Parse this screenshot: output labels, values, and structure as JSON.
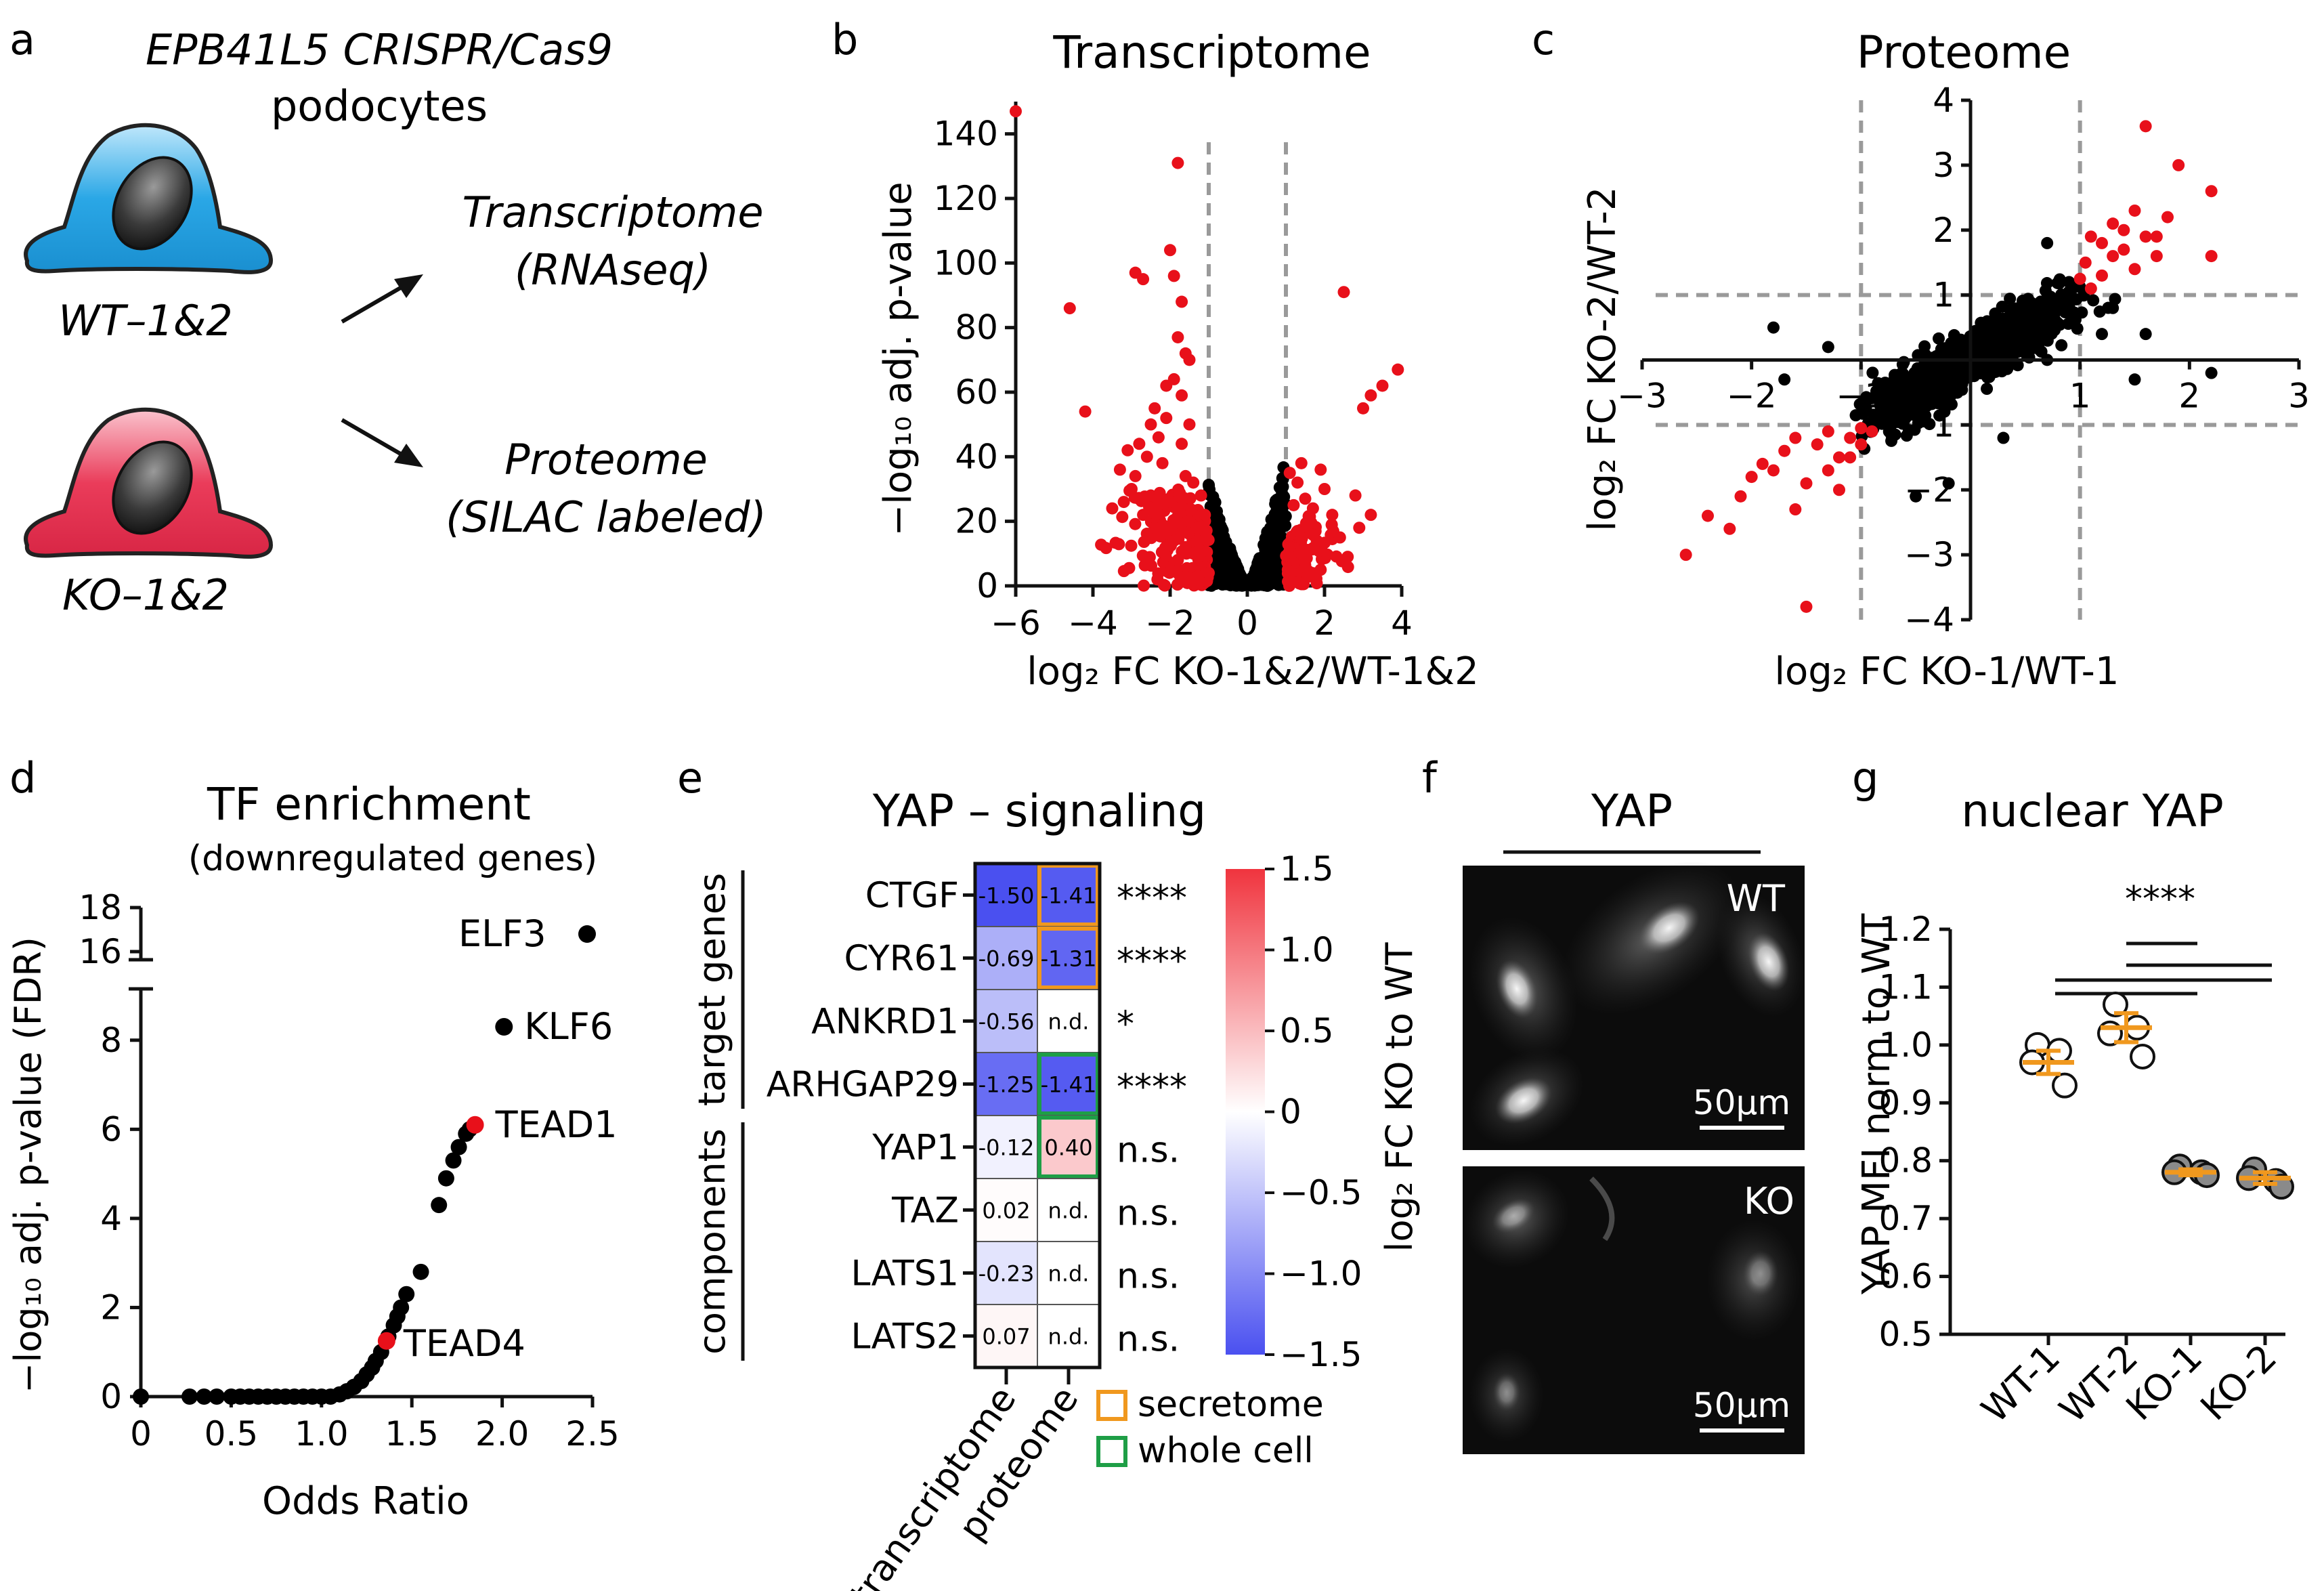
{
  "panel_letters": [
    "a",
    "b",
    "c",
    "d",
    "e",
    "f",
    "g"
  ],
  "panel_a": {
    "title_line1": "EPB41L5 CRISPR/Cas9",
    "title_line2": "podocytes",
    "wt_label": "WT–1&2",
    "ko_label": "KO–1&2",
    "out1_line1": "Transcriptome",
    "out1_line2": "(RNAseq)",
    "out2_line1": "Proteome",
    "out2_line2": "(SILAC labeled)",
    "colors": {
      "wt_cell": "#2aa7e6",
      "ko_cell": "#ea3c5a"
    }
  },
  "chart_data": [
    {
      "panel": "b",
      "type": "scatter",
      "title": "Transcriptome",
      "xlabel": "log₂ FC KO-1&2/WT-1&2",
      "ylabel": "−log₁₀ adj. p-value",
      "xlim": [
        -6,
        4
      ],
      "ylim": [
        0,
        150
      ],
      "xticks": [
        -6,
        -4,
        -2,
        0,
        2,
        4
      ],
      "yticks": [
        0,
        20,
        40,
        60,
        80,
        100,
        120,
        140
      ],
      "thresholds_x": [
        -1,
        1
      ],
      "colors": {
        "significant": "#e8101a",
        "non_significant": "#000000"
      },
      "series": [
        {
          "points_sig": [
            [
              -6.0,
              147
            ],
            [
              -4.6,
              86
            ],
            [
              -4.2,
              54
            ],
            [
              -2.4,
              55
            ],
            [
              -2.5,
              50
            ],
            [
              -1.8,
              131
            ],
            [
              -2.0,
              104
            ],
            [
              -2.9,
              97
            ],
            [
              -2.7,
              95
            ],
            [
              -1.9,
              96
            ],
            [
              -1.7,
              88
            ],
            [
              -1.8,
              77
            ],
            [
              -1.6,
              72
            ],
            [
              -1.5,
              70
            ],
            [
              -1.9,
              64
            ],
            [
              -2.1,
              62
            ],
            [
              -1.7,
              59
            ],
            [
              -2.3,
              46
            ],
            [
              -2.8,
              44
            ],
            [
              -3.1,
              42
            ],
            [
              -2.6,
              40
            ],
            [
              -2.2,
              38
            ],
            [
              -3.3,
              36
            ],
            [
              -1.6,
              34
            ],
            [
              -1.4,
              32
            ],
            [
              -3.0,
              30
            ],
            [
              -2.5,
              28
            ],
            [
              -2.0,
              26
            ],
            [
              -1.8,
              24
            ],
            [
              -3.5,
              24
            ],
            [
              -2.7,
              22
            ],
            [
              -1.5,
              20
            ],
            [
              -1.3,
              18
            ],
            [
              -2.2,
              16
            ],
            [
              -1.9,
              14
            ],
            [
              -1.6,
              12
            ],
            [
              -1.4,
              10
            ],
            [
              -1.2,
              8
            ],
            [
              -1.1,
              6
            ],
            [
              -1.0,
              4
            ],
            [
              -2.4,
              18
            ],
            [
              -3.2,
              26
            ],
            [
              -2.9,
              34
            ],
            [
              -1.7,
              44
            ],
            [
              -1.5,
              50
            ],
            [
              -2.1,
              52
            ],
            [
              -1.2,
              28
            ],
            [
              -1.1,
              22
            ],
            [
              -1.3,
              14
            ],
            [
              -1.8,
              8
            ],
            [
              2.5,
              91
            ],
            [
              3.9,
              67
            ],
            [
              3.5,
              62
            ],
            [
              3.2,
              59
            ],
            [
              3.0,
              55
            ],
            [
              1.9,
              36
            ],
            [
              1.4,
              38
            ],
            [
              1.1,
              35
            ],
            [
              2.0,
              30
            ],
            [
              1.5,
              27
            ],
            [
              1.2,
              25
            ],
            [
              2.8,
              28
            ],
            [
              2.2,
              22
            ],
            [
              1.6,
              20
            ],
            [
              1.3,
              17
            ],
            [
              1.8,
              14
            ],
            [
              2.4,
              15
            ],
            [
              1.1,
              12
            ],
            [
              1.4,
              10
            ],
            [
              1.2,
              7
            ],
            [
              1.05,
              5
            ],
            [
              2.9,
              18
            ],
            [
              1.7,
              24
            ],
            [
              3.2,
              22
            ],
            [
              1.3,
              32
            ],
            [
              2.6,
              9
            ],
            [
              1.9,
              5
            ]
          ],
          "density_neg": {
            "x_from": -1.0,
            "x_to": -0.1,
            "peak": 34
          },
          "density_pos": {
            "x_from": 0.1,
            "x_to": 1.0,
            "peak": 40
          }
        }
      ]
    },
    {
      "panel": "c",
      "type": "scatter",
      "title": "Proteome",
      "xlabel": "log₂ FC KO-1/WT-1",
      "ylabel": "log₂ FC KO-2/WT-2",
      "xlim": [
        -3,
        3
      ],
      "ylim": [
        -4,
        4
      ],
      "xticks": [
        -3,
        -2,
        -1,
        0,
        1,
        2,
        3
      ],
      "xtick_labels": [
        "−3",
        "−2",
        "−1",
        "",
        "1",
        "2",
        "3"
      ],
      "yticks": [
        -4,
        -3,
        -2,
        -1,
        1,
        2,
        3,
        4
      ],
      "ytick_labels": [
        "−4",
        "−3",
        "−2",
        "−1",
        "1",
        "2",
        "3",
        "4"
      ],
      "thresholds": [
        -1,
        1
      ],
      "colors": {
        "significant": "#e8101a",
        "non_significant": "#000000"
      },
      "series": [
        {
          "points_sig": [
            [
              1.6,
              3.6
            ],
            [
              1.9,
              3.0
            ],
            [
              2.2,
              2.6
            ],
            [
              2.2,
              1.6
            ],
            [
              1.5,
              2.3
            ],
            [
              1.3,
              2.1
            ],
            [
              1.1,
              1.9
            ],
            [
              1.4,
              1.7
            ],
            [
              1.7,
              1.6
            ],
            [
              1.2,
              1.3
            ],
            [
              1.05,
              1.5
            ],
            [
              1.6,
              1.9
            ],
            [
              1.3,
              1.6
            ],
            [
              1.8,
              2.2
            ],
            [
              1.1,
              1.1
            ],
            [
              1.5,
              1.4
            ],
            [
              1.2,
              1.8
            ],
            [
              1.4,
              2.0
            ],
            [
              1.0,
              1.25
            ],
            [
              1.7,
              1.9
            ],
            [
              -2.6,
              -3.0
            ],
            [
              -2.4,
              -2.4
            ],
            [
              -2.1,
              -2.1
            ],
            [
              -1.8,
              -1.7
            ],
            [
              -1.6,
              -2.3
            ],
            [
              -1.5,
              -1.9
            ],
            [
              -1.3,
              -1.7
            ],
            [
              -1.2,
              -1.5
            ],
            [
              -1.1,
              -1.2
            ],
            [
              -1.0,
              -1.3
            ],
            [
              -1.4,
              -1.3
            ],
            [
              -1.7,
              -1.4
            ],
            [
              -1.9,
              -1.6
            ],
            [
              -2.2,
              -2.6
            ],
            [
              -1.3,
              -1.1
            ],
            [
              -1.1,
              -1.5
            ],
            [
              -0.9,
              -1.1
            ],
            [
              -1.6,
              -1.2
            ],
            [
              -1.2,
              -2.0
            ],
            [
              -2.0,
              -1.8
            ],
            [
              -1.5,
              -3.8
            ],
            [
              -1.0,
              -1.05
            ]
          ],
          "cloud": {
            "slope": 0.95,
            "count": 1100,
            "spread": 0.28,
            "x_sd": 0.45
          },
          "outliers_ns": [
            [
              -1.8,
              0.5
            ],
            [
              -1.7,
              -0.3
            ],
            [
              -1.3,
              0.2
            ],
            [
              1.2,
              0.4
            ],
            [
              1.6,
              0.4
            ],
            [
              2.2,
              -0.2
            ],
            [
              1.5,
              -0.3
            ],
            [
              0.9,
              1.2
            ],
            [
              0.7,
              1.8
            ],
            [
              -0.5,
              -2.1
            ],
            [
              -0.2,
              -1.9
            ],
            [
              0.3,
              -1.2
            ],
            [
              1.3,
              0.8
            ]
          ]
        }
      ]
    },
    {
      "panel": "d",
      "type": "scatter",
      "title": "TF enrichment",
      "subtitle": "(downregulated genes)",
      "xlabel": "Odds Ratio",
      "ylabel": "−log₁₀ adj. p-value (FDR)",
      "xlim": [
        0,
        2.5
      ],
      "ylim_lower": [
        0,
        9
      ],
      "ylim_upper": [
        16,
        18
      ],
      "xticks": [
        0,
        0.5,
        1.0,
        1.5,
        2.0,
        2.5
      ],
      "xtick_labels": [
        "0",
        "0.5",
        "1.0",
        "1.5",
        "2.0",
        "2.5"
      ],
      "yticks_lower": [
        0,
        2,
        4,
        6,
        8
      ],
      "yticks_upper": [
        16,
        18
      ],
      "colors": {
        "highlight": "#e8101a",
        "other": "#000000"
      },
      "points": [
        [
          0,
          0
        ],
        [
          0.27,
          0
        ],
        [
          0.35,
          0
        ],
        [
          0.42,
          0
        ],
        [
          0.5,
          0
        ],
        [
          0.55,
          0
        ],
        [
          0.6,
          0
        ],
        [
          0.65,
          0
        ],
        [
          0.7,
          0
        ],
        [
          0.75,
          0
        ],
        [
          0.8,
          0
        ],
        [
          0.85,
          0
        ],
        [
          0.9,
          0
        ],
        [
          0.95,
          0
        ],
        [
          1.0,
          0
        ],
        [
          1.05,
          0
        ],
        [
          1.1,
          0.05
        ],
        [
          1.14,
          0.12
        ],
        [
          1.18,
          0.22
        ],
        [
          1.22,
          0.35
        ],
        [
          1.25,
          0.5
        ],
        [
          1.28,
          0.65
        ],
        [
          1.3,
          0.8
        ],
        [
          1.33,
          1.0
        ],
        [
          1.37,
          1.35
        ],
        [
          1.4,
          1.6
        ],
        [
          1.42,
          1.8
        ],
        [
          1.44,
          2.0
        ],
        [
          1.47,
          2.3
        ],
        [
          1.55,
          2.8
        ],
        [
          1.65,
          4.3
        ],
        [
          1.69,
          4.9
        ],
        [
          1.73,
          5.3
        ],
        [
          1.76,
          5.6
        ],
        [
          1.8,
          5.9
        ],
        [
          1.82,
          6.0
        ],
        [
          2.01,
          8.3
        ]
      ],
      "labeled": [
        {
          "name": "ELF3",
          "x": 2.47,
          "y": 16.8,
          "highlight": false
        },
        {
          "name": "KLF6",
          "x": 2.01,
          "y": 8.3,
          "highlight": false
        },
        {
          "name": "TEAD1",
          "x": 1.85,
          "y": 6.1,
          "highlight": true
        },
        {
          "name": "TEAD4",
          "x": 1.36,
          "y": 1.25,
          "highlight": true
        }
      ]
    },
    {
      "panel": "e",
      "type": "heatmap",
      "title": "YAP – signaling",
      "columns": [
        "transcriptome",
        "proteome"
      ],
      "groups": [
        {
          "label": "target genes",
          "rows": [
            0,
            3
          ]
        },
        {
          "label": "components",
          "rows": [
            4,
            7
          ]
        }
      ],
      "rows": [
        {
          "gene": "CTGF",
          "transcriptome": -1.5,
          "proteome": -1.41,
          "proteome_type": "secretome",
          "sig": "****"
        },
        {
          "gene": "CYR61",
          "transcriptome": -0.69,
          "proteome": -1.31,
          "proteome_type": "secretome",
          "sig": "****"
        },
        {
          "gene": "ANKRD1",
          "transcriptome": -0.56,
          "proteome": null,
          "proteome_type": null,
          "sig": "*"
        },
        {
          "gene": "ARHGAP29",
          "transcriptome": -1.25,
          "proteome": -1.41,
          "proteome_type": "whole cell",
          "sig": "****"
        },
        {
          "gene": "YAP1",
          "transcriptome": -0.12,
          "proteome": 0.4,
          "proteome_type": "whole cell",
          "sig": "n.s."
        },
        {
          "gene": "TAZ",
          "transcriptome": 0.02,
          "proteome": null,
          "proteome_type": null,
          "sig": "n.s."
        },
        {
          "gene": "LATS1",
          "transcriptome": -0.23,
          "proteome": null,
          "proteome_type": null,
          "sig": "n.s."
        },
        {
          "gene": "LATS2",
          "transcriptome": 0.07,
          "proteome": null,
          "proteome_type": null,
          "sig": "n.s."
        }
      ],
      "cell_labels": {
        "transcriptome": [
          "-1.50",
          "-0.69",
          "-0.56",
          "-1.25",
          "-0.12",
          "0.02",
          "-0.23",
          "0.07"
        ],
        "proteome": [
          "-1.41",
          "-1.31",
          "n.d.",
          "-1.41",
          "0.40",
          "n.d.",
          "n.d.",
          "n.d."
        ]
      },
      "colorbar": {
        "min": -1.5,
        "max": 1.5,
        "ticks": [
          -1.5,
          -1.0,
          -0.5,
          0,
          0.5,
          1.0,
          1.5
        ],
        "tick_labels": [
          "−1.5",
          "−1.0",
          "−0.5",
          "0",
          "0.5",
          "1.0",
          "1.5"
        ],
        "label": "log₂ FC KO to WT"
      },
      "legend": [
        {
          "label": "secretome",
          "color": "#f0981e"
        },
        {
          "label": "whole cell",
          "color": "#1e9e46"
        }
      ],
      "colors": {
        "neg": "#4a50f0",
        "pos": "#f0343e",
        "mid": "#ffffff"
      }
    },
    {
      "panel": "g",
      "type": "scatter",
      "title": "nuclear YAP",
      "ylabel": "YAP MFI norm to WT",
      "categories": [
        "WT-1",
        "WT-2",
        "KO-1",
        "KO-2"
      ],
      "ylim": [
        0.5,
        1.2
      ],
      "yticks": [
        0.5,
        0.6,
        0.7,
        0.8,
        0.9,
        1.0,
        1.1,
        1.2
      ],
      "ytick_labels": [
        "0.5",
        "0.6",
        "0.7",
        "0.8",
        "0.9",
        "1.0",
        "1.1",
        "1.2"
      ],
      "series": [
        {
          "name": "WT-1",
          "values": [
            1.0,
            0.99,
            0.97,
            0.93
          ],
          "mean": 0.97,
          "sem": 0.02,
          "fill": "#ffffff"
        },
        {
          "name": "WT-2",
          "values": [
            1.07,
            1.03,
            1.02,
            0.98
          ],
          "mean": 1.03,
          "sem": 0.025,
          "fill": "#ffffff"
        },
        {
          "name": "KO-1",
          "values": [
            0.79,
            0.78,
            0.78,
            0.775
          ],
          "mean": 0.78,
          "sem": 0.005,
          "fill": "#8a8a8a"
        },
        {
          "name": "KO-2",
          "values": [
            0.785,
            0.765,
            0.77,
            0.755
          ],
          "mean": 0.77,
          "sem": 0.01,
          "fill": "#8a8a8a"
        }
      ],
      "significance": "****",
      "colors": {
        "mean_bar": "#f0981e"
      }
    }
  ],
  "panel_f": {
    "title": "YAP",
    "top_label": "WT",
    "bottom_label": "KO",
    "scale_bar_top": "50µm",
    "scale_bar_bottom": "50µm"
  }
}
